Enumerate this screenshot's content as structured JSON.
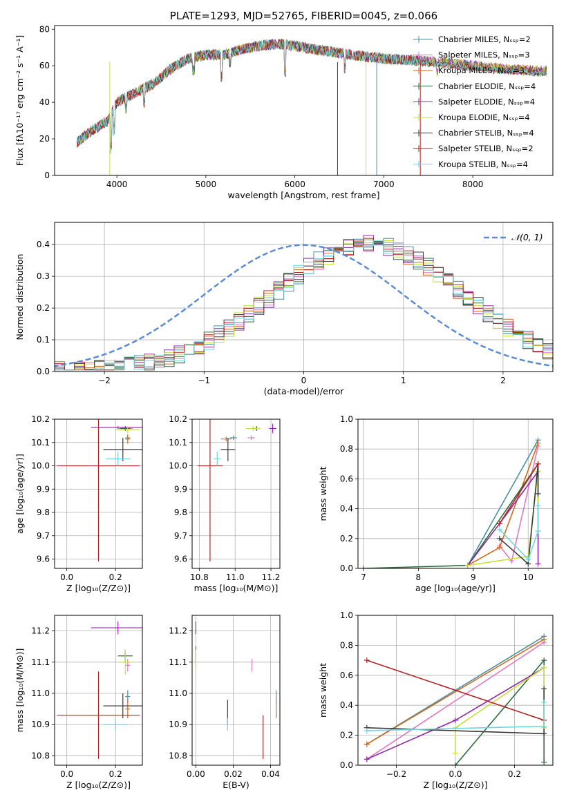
{
  "colors": {
    "chabrier_miles": "#4a90a4",
    "salpeter_miles": "#e377c2",
    "kroupa_miles": "#d2691e",
    "chabrier_elodie": "#2e6b3a",
    "salpeter_elodie": "#8e24aa",
    "kroupa_elodie": "#c6e03a",
    "chabrier_stelib": "#3a3a3a",
    "salpeter_stelib": "#b22222",
    "kroupa_stelib": "#6fd6e0",
    "normal": "#5b8bd6"
  },
  "chart_data": [
    {
      "type": "line",
      "title": "PLATE=1293, MJD=52765, FIBERID=0045, z=0.066",
      "xlabel": "wavelength [Angstrom, rest frame]",
      "ylabel": "Flux [fλ10⁻¹⁷ erg cm⁻² s⁻¹ A⁻¹]",
      "xlim": [
        3300,
        8900
      ],
      "ylim": [
        0,
        82
      ],
      "xticks": [
        "4000",
        "5000",
        "6000",
        "7000",
        "8000"
      ],
      "yticks": [
        "0",
        "20",
        "40",
        "60",
        "80"
      ],
      "legend_position": "top-right",
      "legend": [
        "Chabrier MILES, Nₛₛₚ=2",
        "Salpeter MILES, Nₛₛₚ=3",
        "Kroupa MILES, Nₛₛₚ=3",
        "Chabrier ELODIE, Nₛₛₚ=4",
        "Salpeter ELODIE, Nₛₛₚ=4",
        "Kroupa ELODIE, Nₛₛₚ=4",
        "Chabrier STELIB, Nₛₛₚ=4",
        "Salpeter STELIB, Nₛₛₚ=2",
        "Kroupa STELIB, Nₛₛₚ=4"
      ],
      "continuum": {
        "x": [
          3550,
          3700,
          3900,
          4000,
          4200,
          4400,
          4600,
          4800,
          5000,
          5200,
          5400,
          5600,
          5800,
          6000,
          6200,
          6500,
          6800,
          7000,
          7300,
          7600,
          8000,
          8400,
          8800
        ],
        "y": [
          18,
          24,
          30,
          40,
          45,
          50,
          58,
          64,
          66,
          66,
          69,
          71,
          72,
          71,
          69,
          67,
          65,
          64,
          63,
          62,
          60,
          58,
          57
        ]
      }
    },
    {
      "type": "step",
      "xlabel": "(data-model)/error",
      "ylabel": "Normed distribution",
      "xlim": [
        -2.5,
        2.5
      ],
      "ylim": [
        0,
        0.47
      ],
      "xticks": [
        "−2",
        "−1",
        "0",
        "1",
        "2"
      ],
      "yticks": [
        "0.0",
        "0.1",
        "0.2",
        "0.3",
        "0.4"
      ],
      "legend": [
        "𝒩(0, 1)"
      ],
      "legend_position": "top-right",
      "normal_curve": {
        "mean": 0,
        "sigma": 1
      },
      "histogram_peak_x": 0.6,
      "histogram_peak_y": 0.4
    },
    {
      "type": "scatter",
      "xlabel": "Z [log₁₀(Z/Z⊙)]",
      "ylabel": "age  [log₁₀(age/yr)]",
      "xlim": [
        -0.05,
        0.31
      ],
      "ylim": [
        9.56,
        10.2
      ],
      "xticks": [
        "0.0",
        "0.2"
      ],
      "yticks": [
        "9.6",
        "9.7",
        "9.8",
        "9.9",
        "10.0",
        "10.1",
        "10.2"
      ],
      "points": [
        {
          "x": 0.25,
          "y": 10.12,
          "xerr": 0.01,
          "yerr": 0.01
        },
        {
          "x": 0.24,
          "y": 10.16,
          "xerr": 0.03,
          "yerr": 0.01
        },
        {
          "x": 0.25,
          "y": 10.115,
          "xerr": 0.01,
          "yerr": 0.02
        },
        {
          "x": 0.24,
          "y": 10.16,
          "xerr": 0.02,
          "yerr": 0.01
        },
        {
          "x": 0.21,
          "y": 10.165,
          "xerr": 0.11,
          "yerr": 0.005
        },
        {
          "x": 0.25,
          "y": 10.155,
          "xerr": 0.05,
          "yerr": 0.015
        },
        {
          "x": 0.23,
          "y": 10.07,
          "xerr": 0.08,
          "yerr": 0.05
        },
        {
          "x": 0.13,
          "y": 10.0,
          "xerr": 0.17,
          "yerr": 0.41
        },
        {
          "x": 0.21,
          "y": 10.03,
          "xerr": 0.05,
          "yerr": 0.03
        }
      ]
    },
    {
      "type": "scatter",
      "xlabel": "mass [log₁₀(M/M⊙)]",
      "ylabel": "",
      "xlim": [
        10.76,
        11.25
      ],
      "ylim": [
        9.56,
        10.2
      ],
      "xticks": [
        "10.8",
        "11.0",
        "11.2"
      ],
      "yticks": [
        "9.6",
        "9.7",
        "9.8",
        "9.9",
        "10.0",
        "10.1",
        "10.2"
      ],
      "points": [
        {
          "x": 10.99,
          "y": 10.12,
          "xerr": 0.02,
          "yerr": 0.01
        },
        {
          "x": 11.09,
          "y": 10.12,
          "xerr": 0.02,
          "yerr": 0.01
        },
        {
          "x": 10.95,
          "y": 10.115,
          "xerr": 0.03,
          "yerr": 0.01
        },
        {
          "x": 11.12,
          "y": 10.16,
          "xerr": 0.02,
          "yerr": 0.01
        },
        {
          "x": 11.21,
          "y": 10.16,
          "xerr": 0.02,
          "yerr": 0.02
        },
        {
          "x": 11.1,
          "y": 10.16,
          "xerr": 0.04,
          "yerr": 0.01
        },
        {
          "x": 10.96,
          "y": 10.07,
          "xerr": 0.04,
          "yerr": 0.05
        },
        {
          "x": 10.86,
          "y": 10.0,
          "xerr": 0.07,
          "yerr": 0.41
        },
        {
          "x": 10.9,
          "y": 10.03,
          "xerr": 0.02,
          "yerr": 0.03
        }
      ]
    },
    {
      "type": "line",
      "xlabel": "age  [log₁₀(age/yr)]",
      "ylabel": "mass weight",
      "xlim": [
        6.9,
        10.45
      ],
      "ylim": [
        0,
        1.0
      ],
      "xticks": [
        "7",
        "8",
        "9",
        "10"
      ],
      "yticks": [
        "0.0",
        "0.2",
        "0.4",
        "0.6",
        "0.8",
        "1.0"
      ],
      "series": [
        {
          "x": [
            8.9,
            10.18
          ],
          "y": [
            0.02,
            0.86
          ]
        },
        {
          "x": [
            9.48,
            9.7,
            10.18
          ],
          "y": [
            0.15,
            0.05,
            0.82
          ]
        },
        {
          "x": [
            8.9,
            9.48,
            10.18
          ],
          "y": [
            0.02,
            0.14,
            0.84
          ]
        },
        {
          "x": [
            7.0,
            8.9,
            10.18
          ],
          "y": [
            0.0,
            0.02,
            0.7
          ]
        },
        {
          "x": [
            8.9,
            9.48,
            10.18,
            10.18
          ],
          "y": [
            0.02,
            0.3,
            0.65,
            0.03
          ]
        },
        {
          "x": [
            8.9,
            10.0,
            10.18,
            10.18
          ],
          "y": [
            0.02,
            0.08,
            0.65,
            0.25
          ]
        },
        {
          "x": [
            9.48,
            10.0,
            10.18,
            10.18
          ],
          "y": [
            0.2,
            0.03,
            0.7,
            0.5
          ]
        },
        {
          "x": [
            9.48,
            10.18
          ],
          "y": [
            0.3,
            0.7
          ]
        },
        {
          "x": [
            9.48,
            10.0,
            10.18,
            10.18
          ],
          "y": [
            0.26,
            0.06,
            0.25,
            0.42
          ]
        }
      ]
    },
    {
      "type": "scatter",
      "xlabel": "Z [log₁₀(Z/Z⊙)]",
      "ylabel": "mass [log₁₀(M/M⊙)]",
      "xlim": [
        -0.05,
        0.31
      ],
      "ylim": [
        10.77,
        11.25
      ],
      "xticks": [
        "0.0",
        "0.2"
      ],
      "yticks": [
        "10.8",
        "10.9",
        "11.0",
        "11.1",
        "11.2"
      ],
      "points": [
        {
          "x": 0.25,
          "y": 10.99,
          "xerr": 0.01,
          "yerr": 0.02
        },
        {
          "x": 0.25,
          "y": 11.09,
          "xerr": 0.01,
          "yerr": 0.02
        },
        {
          "x": 0.25,
          "y": 10.95,
          "xerr": 0.01,
          "yerr": 0.03
        },
        {
          "x": 0.24,
          "y": 11.12,
          "xerr": 0.03,
          "yerr": 0.02
        },
        {
          "x": 0.21,
          "y": 11.21,
          "xerr": 0.11,
          "yerr": 0.02
        },
        {
          "x": 0.24,
          "y": 11.1,
          "xerr": 0.03,
          "yerr": 0.04
        },
        {
          "x": 0.23,
          "y": 10.96,
          "xerr": 0.08,
          "yerr": 0.04
        },
        {
          "x": 0.13,
          "y": 10.93,
          "xerr": 0.17,
          "yerr": 0.14
        },
        {
          "x": 0.2,
          "y": 10.9,
          "xerr": 0.05,
          "yerr": 0.02
        }
      ]
    },
    {
      "type": "scatter",
      "xlabel": "E(B-V)",
      "ylabel": "",
      "xlim": [
        -0.002,
        0.045
      ],
      "ylim": [
        10.77,
        11.25
      ],
      "xticks": [
        "0.00",
        "0.02",
        "0.04"
      ],
      "yticks": [
        "10.8",
        "10.9",
        "11.0",
        "11.1",
        "11.2"
      ],
      "points": [
        {
          "x": 0.043,
          "y": 10.99,
          "yerr": 0.02
        },
        {
          "x": 0.03,
          "y": 11.09,
          "yerr": 0.02
        },
        {
          "x": 0.043,
          "y": 10.95,
          "yerr": 0.03
        },
        {
          "x": 0.0,
          "y": 11.12,
          "yerr": 0.03
        },
        {
          "x": 0.0,
          "y": 11.21,
          "yerr": 0.02
        },
        {
          "x": 0.0,
          "y": 11.1,
          "yerr": 0.04
        },
        {
          "x": 0.017,
          "y": 10.94,
          "yerr": 0.04
        },
        {
          "x": 0.036,
          "y": 10.86,
          "yerr": 0.07
        },
        {
          "x": 0.017,
          "y": 10.9,
          "yerr": 0.02
        }
      ]
    },
    {
      "type": "line",
      "xlabel": "Z [log₁₀(Z/Z⊙)]",
      "ylabel": "mass weight",
      "xlim": [
        -0.33,
        0.33
      ],
      "ylim": [
        0,
        1.0
      ],
      "xticks": [
        "−0.2",
        "0.0",
        "0.2"
      ],
      "yticks": [
        "0.0",
        "0.2",
        "0.4",
        "0.6",
        "0.8",
        "1.0"
      ],
      "series": [
        {
          "x": [
            -0.3,
            0.3
          ],
          "y": [
            0.14,
            0.86
          ]
        },
        {
          "x": [
            -0.3,
            0.3
          ],
          "y": [
            0.04,
            0.82
          ]
        },
        {
          "x": [
            -0.3,
            0.3
          ],
          "y": [
            0.14,
            0.84
          ]
        },
        {
          "x": [
            0.0,
            0.3,
            0.3
          ],
          "y": [
            0.0,
            0.7,
            0.02
          ]
        },
        {
          "x": [
            -0.3,
            0.0,
            0.3
          ],
          "y": [
            0.04,
            0.3,
            0.65
          ]
        },
        {
          "x": [
            0.0,
            0.0,
            0.3,
            0.3
          ],
          "y": [
            0.08,
            0.25,
            0.65,
            0.25
          ]
        },
        {
          "x": [
            -0.3,
            0.3,
            0.3
          ],
          "y": [
            0.25,
            0.21,
            0.51
          ]
        },
        {
          "x": [
            -0.3,
            0.3
          ],
          "y": [
            0.7,
            0.3
          ]
        },
        {
          "x": [
            -0.3,
            0.3,
            0.3
          ],
          "y": [
            0.23,
            0.26,
            0.42
          ]
        }
      ]
    }
  ]
}
